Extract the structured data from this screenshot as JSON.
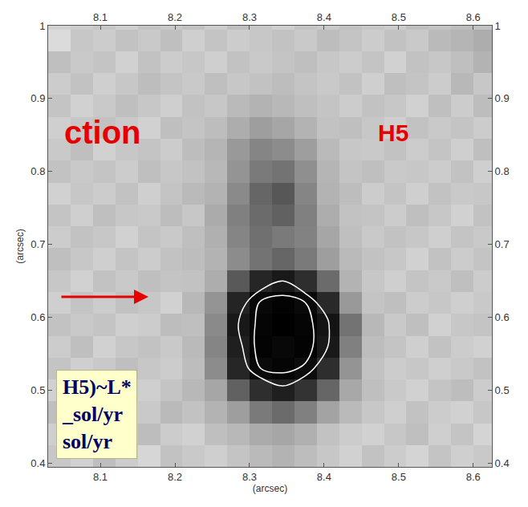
{
  "chart_data": {
    "type": "heatmap",
    "xlabel": "(arcsec)",
    "ylabel": "(arcsec)",
    "annotations": [
      "ction",
      "H5"
    ],
    "box_lines": [
      "H5)~L*",
      "_sol/yr",
      "sol/yr"
    ],
    "xlim": [
      8.03,
      8.625
    ],
    "ylim": [
      0.395,
      1.0
    ],
    "xticks": [
      8.1,
      8.2,
      8.3,
      8.4,
      8.5,
      8.6
    ],
    "yticks": [
      0.4,
      0.5,
      0.6,
      0.7,
      0.8,
      0.9,
      1
    ],
    "grid": false,
    "zlim": [
      0,
      100
    ],
    "contour_levels": [
      90,
      96
    ],
    "x": [
      8.045,
      8.075,
      8.105,
      8.135,
      8.165,
      8.195,
      8.225,
      8.255,
      8.285,
      8.315,
      8.345,
      8.375,
      8.405,
      8.435,
      8.465,
      8.495,
      8.525,
      8.555,
      8.585,
      8.615
    ],
    "y": [
      0.41,
      0.44,
      0.47,
      0.5,
      0.53,
      0.56,
      0.59,
      0.62,
      0.65,
      0.68,
      0.71,
      0.74,
      0.77,
      0.8,
      0.83,
      0.86,
      0.89,
      0.92,
      0.95,
      0.98,
      1.01
    ],
    "z": [
      [
        22,
        18,
        25,
        20,
        16,
        24,
        21,
        19,
        23,
        27,
        30,
        26,
        22,
        18,
        24,
        20,
        17,
        23,
        19,
        21
      ],
      [
        19,
        24,
        17,
        22,
        26,
        20,
        18,
        25,
        28,
        33,
        35,
        31,
        24,
        20,
        18,
        22,
        25,
        19,
        23,
        17
      ],
      [
        25,
        20,
        23,
        18,
        21,
        27,
        24,
        30,
        38,
        52,
        58,
        50,
        36,
        27,
        22,
        19,
        24,
        20,
        18,
        22
      ],
      [
        18,
        22,
        26,
        21,
        19,
        23,
        28,
        35,
        62,
        82,
        88,
        80,
        60,
        34,
        25,
        21,
        18,
        23,
        26,
        20
      ],
      [
        23,
        19,
        21,
        25,
        22,
        20,
        26,
        45,
        85,
        96,
        98,
        95,
        82,
        42,
        24,
        20,
        22,
        19,
        21,
        24
      ],
      [
        20,
        25,
        18,
        22,
        24,
        21,
        27,
        48,
        88,
        99,
        97,
        99,
        90,
        50,
        26,
        23,
        19,
        24,
        20,
        18
      ],
      [
        24,
        21,
        23,
        19,
        20,
        26,
        25,
        46,
        90,
        98,
        100,
        98,
        92,
        55,
        28,
        21,
        25,
        18,
        22,
        23
      ],
      [
        19,
        23,
        20,
        24,
        22,
        18,
        28,
        42,
        86,
        97,
        99,
        96,
        84,
        40,
        23,
        25,
        20,
        22,
        19,
        21
      ],
      [
        22,
        18,
        24,
        21,
        25,
        23,
        24,
        32,
        65,
        85,
        90,
        82,
        58,
        30,
        22,
        19,
        23,
        21,
        25,
        20
      ],
      [
        25,
        22,
        19,
        23,
        20,
        24,
        26,
        30,
        45,
        55,
        60,
        52,
        38,
        27,
        24,
        22,
        18,
        24,
        20,
        23
      ],
      [
        20,
        24,
        22,
        18,
        23,
        21,
        25,
        31,
        48,
        56,
        52,
        49,
        35,
        25,
        21,
        24,
        22,
        19,
        23,
        21
      ],
      [
        23,
        19,
        25,
        22,
        21,
        26,
        22,
        33,
        50,
        58,
        62,
        50,
        32,
        24,
        23,
        20,
        25,
        22,
        18,
        24
      ],
      [
        18,
        22,
        20,
        24,
        19,
        23,
        27,
        30,
        46,
        60,
        66,
        48,
        30,
        26,
        20,
        23,
        19,
        24,
        21,
        22
      ],
      [
        24,
        21,
        23,
        20,
        25,
        22,
        24,
        28,
        42,
        52,
        55,
        44,
        29,
        23,
        25,
        21,
        22,
        20,
        24,
        19
      ],
      [
        21,
        25,
        18,
        22,
        23,
        20,
        26,
        29,
        40,
        48,
        45,
        38,
        27,
        22,
        21,
        24,
        20,
        23,
        19,
        25
      ],
      [
        19,
        22,
        24,
        21,
        18,
        25,
        23,
        26,
        32,
        38,
        35,
        30,
        24,
        25,
        22,
        19,
        24,
        21,
        23,
        20
      ],
      [
        23,
        18,
        21,
        25,
        22,
        19,
        24,
        22,
        27,
        30,
        28,
        25,
        23,
        20,
        24,
        22,
        18,
        25,
        20,
        26
      ],
      [
        20,
        24,
        19,
        22,
        26,
        23,
        21,
        25,
        22,
        24,
        26,
        23,
        21,
        24,
        19,
        25,
        23,
        20,
        28,
        22
      ],
      [
        25,
        21,
        23,
        18,
        24,
        20,
        22,
        19,
        24,
        21,
        23,
        25,
        22,
        20,
        23,
        18,
        24,
        22,
        25,
        30
      ],
      [
        14,
        22,
        20,
        24,
        21,
        25,
        19,
        23,
        20,
        22,
        24,
        21,
        26,
        23,
        20,
        24,
        21,
        27,
        29,
        32
      ],
      [
        18,
        20,
        22,
        19,
        23,
        21,
        24,
        20,
        25,
        22,
        19,
        23,
        21,
        24,
        22,
        20,
        25,
        23,
        26,
        24
      ]
    ]
  }
}
